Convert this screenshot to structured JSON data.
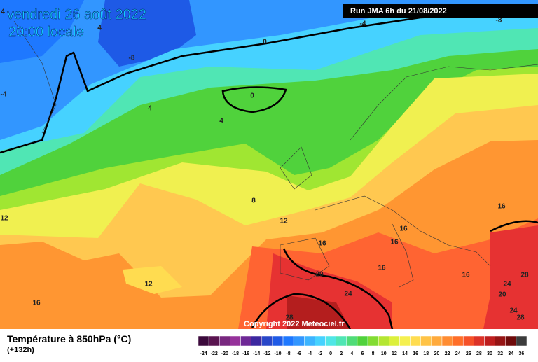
{
  "header": {
    "date": "vendredi 26 août 2022",
    "time": "20:00 locale",
    "run": "Run JMA 6h du 21/08/2022"
  },
  "copyright": "Copyright 2022 Meteociel.fr",
  "legend": {
    "title": "Température à 850hPa (°C)",
    "lead": "(+132h)",
    "ticks": [
      -24,
      -22,
      -20,
      -18,
      -16,
      -14,
      -12,
      -10,
      -8,
      -6,
      -4,
      -2,
      0,
      2,
      4,
      6,
      8,
      10,
      12,
      14,
      16,
      18,
      20,
      22,
      24,
      26,
      28,
      30,
      32,
      34,
      36
    ],
    "colors": [
      "#3c0a3c",
      "#5a1450",
      "#78287f",
      "#96329b",
      "#6e2896",
      "#3c28a0",
      "#2846c8",
      "#1e5ae6",
      "#1e78ff",
      "#3296ff",
      "#3cb4ff",
      "#46d2ff",
      "#50e6e6",
      "#50e6b4",
      "#50dc78",
      "#50d23c",
      "#82dc32",
      "#b4e632",
      "#dcf03c",
      "#f5f050",
      "#ffdc50",
      "#ffc346",
      "#ffaa3c",
      "#ff8c32",
      "#ff6e28",
      "#f55028",
      "#dc3228",
      "#be1e1e",
      "#961414",
      "#6e0a0a",
      "#3c3c3c"
    ]
  },
  "contour_labels": [
    4,
    4,
    -8,
    -4,
    -8,
    0,
    -4,
    0,
    4,
    4,
    8,
    12,
    12,
    16,
    16,
    16,
    16,
    16,
    16,
    16,
    12,
    20,
    24,
    28,
    24,
    20,
    28,
    24,
    28
  ]
}
